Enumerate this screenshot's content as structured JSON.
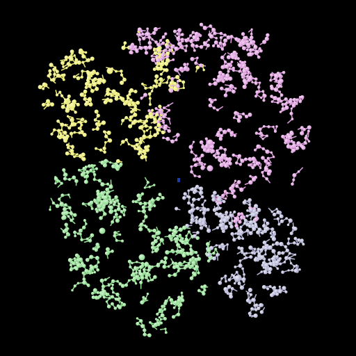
{
  "background": "#000000",
  "chains": [
    {
      "id": "chain-a",
      "color": "#e6e673",
      "highlight": "#fbfbb8"
    },
    {
      "id": "chain-b",
      "color": "#d89ad8",
      "highlight": "#f6d6f6"
    },
    {
      "id": "chain-c",
      "color": "#8fd98f",
      "highlight": "#d2f6d2"
    },
    {
      "id": "chain-d",
      "color": "#b0b0d0",
      "highlight": "#e8e8f6"
    }
  ],
  "center_marker_color": "#1a3fa8"
}
